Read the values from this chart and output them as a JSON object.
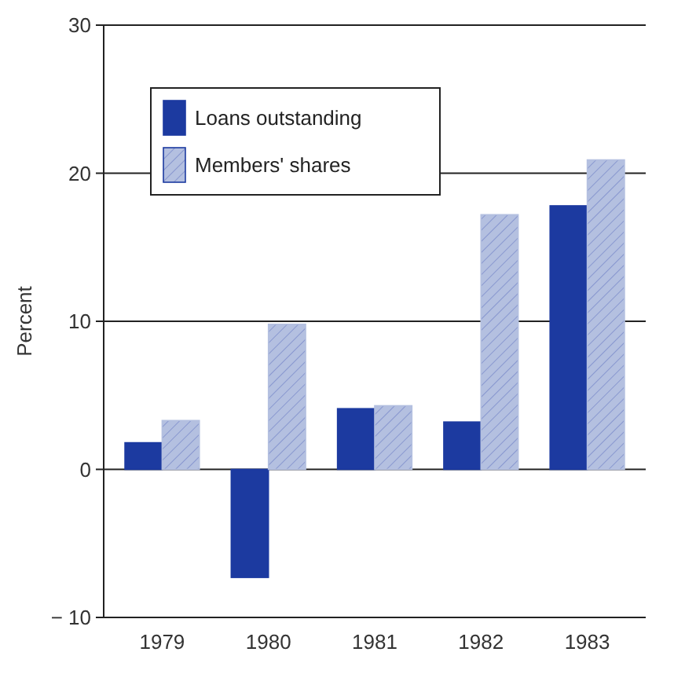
{
  "chart_data": {
    "type": "bar",
    "ylabel": "Percent",
    "categories": [
      "1979",
      "1980",
      "1981",
      "1982",
      "1983"
    ],
    "series": [
      {
        "name": "Loans outstanding",
        "color": "#1c3aa0",
        "values": [
          1.8,
          -7.3,
          4.1,
          3.2,
          17.8
        ]
      },
      {
        "name": "Members' shares",
        "color": "#b4c0e0",
        "values": [
          3.3,
          9.8,
          4.3,
          17.2,
          20.9
        ]
      }
    ],
    "ylim": [
      -10,
      30
    ],
    "yticks": [
      {
        "value": -10,
        "label": "− 10"
      },
      0,
      10,
      20,
      30
    ],
    "grid": "y",
    "legend": "top left"
  }
}
